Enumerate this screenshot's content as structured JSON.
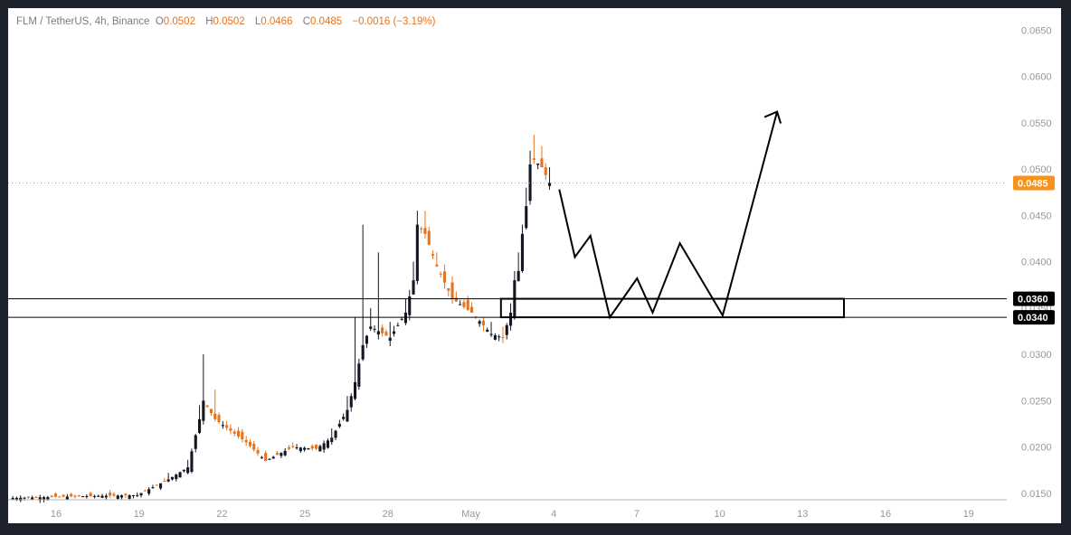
{
  "legend": {
    "symbol": "FLM / TetherUS, 4h, Binance",
    "o_label": "O",
    "o_value": "0.0502",
    "h_label": "H",
    "h_value": "0.0502",
    "l_label": "L",
    "l_value": "0.0466",
    "c_label": "C",
    "c_value": "0.0485",
    "change": "−0.0016 (−3.19%)"
  },
  "colors": {
    "up": "#131722",
    "down": "#e8731c",
    "last_price": "#f7931a",
    "grid_text": "#9598a1",
    "frame": "#1e222d"
  },
  "chart_data": {
    "type": "candlestick",
    "ylim": [
      0.0143,
      0.0665
    ],
    "y_ticks": [
      "0.0150",
      "0.0200",
      "0.0250",
      "0.0300",
      "0.0350",
      "0.0400",
      "0.0450",
      "0.0500",
      "0.0550",
      "0.0600",
      "0.0650"
    ],
    "x_ticks": [
      "16",
      "19",
      "22",
      "25",
      "28",
      "May",
      "4",
      "7",
      "10",
      "13",
      "16",
      "19"
    ],
    "last_price_label": "0.0485",
    "zone_labels": [
      "0.0360",
      "0.0340"
    ],
    "anchors": [
      {
        "bar": 0,
        "close": 0.0145,
        "high": 0.0147
      },
      {
        "bar": 20,
        "close": 0.0147,
        "high": 0.0152
      },
      {
        "bar": 32,
        "close": 0.0148,
        "high": 0.0151
      },
      {
        "bar": 40,
        "close": 0.0165,
        "high": 0.0172
      },
      {
        "bar": 45,
        "close": 0.0178,
        "high": 0.0186
      },
      {
        "bar": 48,
        "close": 0.023,
        "high": 0.0245
      },
      {
        "bar": 49,
        "close": 0.025,
        "high": 0.03
      },
      {
        "bar": 52,
        "close": 0.023,
        "high": 0.0262
      },
      {
        "bar": 60,
        "close": 0.0205,
        "high": 0.0212
      },
      {
        "bar": 65,
        "close": 0.0185,
        "high": 0.0192
      },
      {
        "bar": 72,
        "close": 0.02,
        "high": 0.0205
      },
      {
        "bar": 78,
        "close": 0.0198,
        "high": 0.0203
      },
      {
        "bar": 82,
        "close": 0.021,
        "high": 0.022
      },
      {
        "bar": 86,
        "close": 0.024,
        "high": 0.0255
      },
      {
        "bar": 88,
        "close": 0.027,
        "high": 0.034
      },
      {
        "bar": 90,
        "close": 0.031,
        "high": 0.044
      },
      {
        "bar": 92,
        "close": 0.033,
        "high": 0.035
      },
      {
        "bar": 94,
        "close": 0.0325,
        "high": 0.041
      },
      {
        "bar": 97,
        "close": 0.0318,
        "high": 0.0335
      },
      {
        "bar": 101,
        "close": 0.0345,
        "high": 0.036
      },
      {
        "bar": 103,
        "close": 0.038,
        "high": 0.04
      },
      {
        "bar": 104,
        "close": 0.044,
        "high": 0.0455
      },
      {
        "bar": 106,
        "close": 0.043,
        "high": 0.0455
      },
      {
        "bar": 109,
        "close": 0.0395,
        "high": 0.041
      },
      {
        "bar": 113,
        "close": 0.036,
        "high": 0.0375
      },
      {
        "bar": 118,
        "close": 0.0345,
        "high": 0.0355
      },
      {
        "bar": 123,
        "close": 0.0322,
        "high": 0.0335
      },
      {
        "bar": 126,
        "close": 0.0318,
        "high": 0.033
      },
      {
        "bar": 128,
        "close": 0.0345,
        "high": 0.0355
      },
      {
        "bar": 129,
        "close": 0.038,
        "high": 0.039
      },
      {
        "bar": 130,
        "close": 0.039,
        "high": 0.041
      },
      {
        "bar": 131,
        "close": 0.043,
        "high": 0.044
      },
      {
        "bar": 132,
        "close": 0.046,
        "high": 0.048
      },
      {
        "bar": 133,
        "close": 0.0505,
        "high": 0.052
      },
      {
        "bar": 134,
        "close": 0.051,
        "high": 0.0537
      },
      {
        "bar": 136,
        "close": 0.0502,
        "high": 0.0525
      },
      {
        "bar": 138,
        "close": 0.0485,
        "high": 0.0502
      }
    ],
    "zone": {
      "top": 0.036,
      "bottom": 0.034
    },
    "projection": [
      {
        "bar": 141,
        "y": 0.0478
      },
      {
        "bar": 145,
        "y": 0.0405
      },
      {
        "bar": 149,
        "y": 0.0428
      },
      {
        "bar": 154,
        "y": 0.034
      },
      {
        "bar": 161,
        "y": 0.0382
      },
      {
        "bar": 165,
        "y": 0.0345
      },
      {
        "bar": 172,
        "y": 0.042
      },
      {
        "bar": 183,
        "y": 0.0342
      },
      {
        "bar": 197,
        "y": 0.0562
      }
    ]
  }
}
